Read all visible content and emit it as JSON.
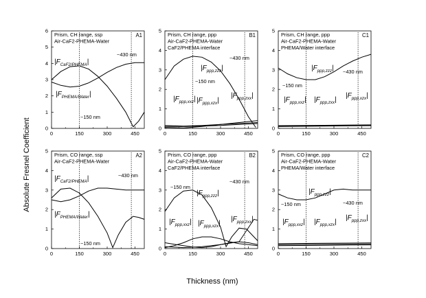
{
  "figure": {
    "ylabel": "Absolute Fresnel Coefficient",
    "xlabel": "Thickness (nm)"
  },
  "chart_data": [
    {
      "type": "line",
      "label": "A1",
      "info": [
        "Prism, CH range, ssp",
        "Air-CaF2-PHEMA-Water"
      ],
      "xlim": [
        0,
        500
      ],
      "ylim": [
        0,
        6
      ],
      "xticks": [
        0,
        150,
        300,
        450
      ],
      "yticks": [
        0,
        1,
        2,
        3,
        4,
        5,
        6
      ],
      "markers": [
        150,
        430
      ],
      "annotations": [
        "~430 nm",
        "~150 nm"
      ],
      "series": [
        {
          "name": "|F_CaF2/PHEMA|",
          "x": [
            0,
            50,
            100,
            150,
            200,
            250,
            300,
            350,
            400,
            450,
            500
          ],
          "y": [
            2.85,
            2.65,
            2.55,
            2.6,
            2.8,
            3.1,
            3.45,
            3.75,
            3.95,
            4.05,
            4.05
          ]
        },
        {
          "name": "|F_PHEMA/Water|",
          "x": [
            0,
            50,
            100,
            150,
            200,
            250,
            300,
            350,
            400,
            440,
            470,
            500
          ],
          "y": [
            3.0,
            3.5,
            3.8,
            3.85,
            3.65,
            3.2,
            2.6,
            1.85,
            1.0,
            0.1,
            0.45,
            1.0
          ]
        }
      ]
    },
    {
      "type": "line",
      "label": "B1",
      "info": [
        "Prism, CH range, ppp",
        "Air-CaF2-PHEMA-Water",
        "CaF2/PHEMA interface"
      ],
      "xlim": [
        0,
        500
      ],
      "ylim": [
        0,
        5
      ],
      "xticks": [
        0,
        150,
        300,
        450
      ],
      "yticks": [
        0,
        1,
        2,
        3,
        4,
        5
      ],
      "markers": [
        150,
        430
      ],
      "annotations": [
        "~430 nm",
        "~150 nm"
      ],
      "series": [
        {
          "name": "|F_ppp,zzz|",
          "x": [
            0,
            50,
            100,
            150,
            200,
            250,
            300,
            350,
            400,
            450,
            490
          ],
          "y": [
            2.5,
            3.2,
            3.55,
            3.7,
            3.65,
            3.4,
            2.95,
            2.3,
            1.5,
            0.6,
            0.05
          ]
        },
        {
          "name": "|F_ppp,xxz|",
          "x": [
            0,
            100,
            200,
            300,
            400,
            500
          ],
          "y": [
            0.1,
            0.1,
            0.12,
            0.15,
            0.2,
            0.25
          ]
        },
        {
          "name": "|F_ppp,xzx|",
          "x": [
            0,
            100,
            200,
            300,
            400,
            500
          ],
          "y": [
            0.05,
            0.02,
            0.1,
            0.2,
            0.3,
            0.4
          ]
        },
        {
          "name": "|F_ppp,zxx|",
          "x": [
            0,
            100,
            200,
            300,
            400,
            500
          ],
          "y": [
            0.15,
            0.12,
            0.15,
            0.2,
            0.25,
            0.3
          ]
        }
      ]
    },
    {
      "type": "line",
      "label": "C1",
      "info": [
        "Prism, CH range, ppp",
        "Air-CaF2-PHEMA-Water",
        "PHEMA/Water interface"
      ],
      "xlim": [
        0,
        500
      ],
      "ylim": [
        0,
        5
      ],
      "xticks": [
        0,
        150,
        300,
        450
      ],
      "yticks": [
        0,
        1,
        2,
        3,
        4,
        5
      ],
      "markers": [
        150,
        430
      ],
      "annotations": [
        "~430 nm",
        "~150 nm"
      ],
      "series": [
        {
          "name": "|F_ppp,zzz|",
          "x": [
            0,
            50,
            100,
            150,
            200,
            250,
            300,
            350,
            400,
            450,
            500
          ],
          "y": [
            3.1,
            2.8,
            2.6,
            2.5,
            2.5,
            2.65,
            2.9,
            3.2,
            3.45,
            3.65,
            3.8
          ]
        },
        {
          "name": "|F_ppp,xxz|",
          "x": [
            0,
            250,
            500
          ],
          "y": [
            0.1,
            0.12,
            0.14
          ]
        },
        {
          "name": "|F_ppp,zxx|",
          "x": [
            0,
            250,
            500
          ],
          "y": [
            0.12,
            0.14,
            0.16
          ]
        },
        {
          "name": "|F_ppp,xzx|",
          "x": [
            0,
            250,
            500
          ],
          "y": [
            0.14,
            0.16,
            0.18
          ]
        }
      ]
    },
    {
      "type": "line",
      "label": "A2",
      "info": [
        "Prism, CO range, ssp",
        "Air-CaF2-PHEMA-Water"
      ],
      "xlim": [
        0,
        500
      ],
      "ylim": [
        0,
        5
      ],
      "xticks": [
        0,
        150,
        300,
        450
      ],
      "yticks": [
        0,
        1,
        2,
        3,
        4,
        5
      ],
      "markers": [
        150,
        430
      ],
      "annotations": [
        "~430 nm",
        "~150 nm"
      ],
      "series": [
        {
          "name": "|F_CaF2/PHEMA|",
          "x": [
            0,
            50,
            100,
            150,
            200,
            250,
            300,
            350,
            400,
            450,
            500
          ],
          "y": [
            2.5,
            2.4,
            2.5,
            2.7,
            2.95,
            3.1,
            3.1,
            3.05,
            3.0,
            3.0,
            3.0
          ]
        },
        {
          "name": "|F_PHEMA/Water|",
          "x": [
            0,
            50,
            100,
            150,
            200,
            250,
            300,
            330,
            360,
            400,
            440,
            470,
            500
          ],
          "y": [
            2.6,
            3.05,
            3.1,
            2.85,
            2.35,
            1.65,
            0.8,
            0.05,
            0.7,
            1.35,
            1.65,
            1.6,
            1.5
          ]
        }
      ]
    },
    {
      "type": "line",
      "label": "B2",
      "info": [
        "Prism, CO range, ppp",
        "Air-CaF2-PHEMA-Water",
        "CaF2/PHEMA interface"
      ],
      "xlim": [
        0,
        500
      ],
      "ylim": [
        0,
        5
      ],
      "xticks": [
        0,
        150,
        300,
        450
      ],
      "yticks": [
        0,
        1,
        2,
        3,
        4,
        5
      ],
      "markers": [
        150,
        430
      ],
      "annotations": [
        "~430 nm",
        "~150 nm"
      ],
      "series": [
        {
          "name": "|F_ppp,zzz|",
          "x": [
            0,
            50,
            100,
            150,
            200,
            250,
            300,
            330,
            360,
            400,
            440,
            480,
            500
          ],
          "y": [
            1.9,
            2.6,
            2.95,
            3.0,
            2.75,
            2.1,
            1.1,
            0.1,
            0.6,
            1.05,
            1.0,
            0.6,
            0.4
          ]
        },
        {
          "name": "|F_ppp,xxz|",
          "x": [
            0,
            50,
            100,
            150,
            200,
            250,
            300,
            350,
            400,
            450,
            500
          ],
          "y": [
            0.05,
            0.15,
            0.3,
            0.5,
            0.6,
            0.6,
            0.5,
            0.35,
            0.25,
            0.2,
            0.15
          ]
        },
        {
          "name": "|F_ppp,xzx|",
          "x": [
            0,
            50,
            100,
            150,
            200,
            250,
            300,
            350,
            400,
            450,
            500
          ],
          "y": [
            0.3,
            0.22,
            0.15,
            0.08,
            0.05,
            0.1,
            0.2,
            0.3,
            0.35,
            0.3,
            0.2
          ]
        },
        {
          "name": "|F_ppp,zxx|",
          "x": [
            0,
            100,
            200,
            300,
            400,
            480,
            500
          ],
          "y": [
            0.1,
            0.05,
            0.1,
            0.2,
            0.35,
            1.5,
            1.45
          ]
        }
      ]
    },
    {
      "type": "line",
      "label": "C2",
      "info": [
        "Prism, CO range, ppp",
        "Air-CaF2-PHEMA-Water",
        "PHEMA/Water interface"
      ],
      "xlim": [
        0,
        500
      ],
      "ylim": [
        0,
        5
      ],
      "xticks": [
        0,
        150,
        300,
        450
      ],
      "yticks": [
        0,
        1,
        2,
        3,
        4,
        5
      ],
      "markers": [
        150,
        430
      ],
      "annotations": [
        "~430 nm",
        "~150 nm"
      ],
      "series": [
        {
          "name": "|F_ppp,zzz|",
          "x": [
            0,
            50,
            100,
            150,
            200,
            250,
            300,
            350,
            400,
            450,
            500
          ],
          "y": [
            2.8,
            2.6,
            2.5,
            2.5,
            2.6,
            2.8,
            3.0,
            3.05,
            3.0,
            3.0,
            3.0
          ]
        },
        {
          "name": "|F_ppp,xxz|",
          "x": [
            0,
            250,
            500
          ],
          "y": [
            0.15,
            0.17,
            0.19
          ]
        },
        {
          "name": "|F_ppp,xzx|",
          "x": [
            0,
            250,
            500
          ],
          "y": [
            0.2,
            0.22,
            0.24
          ]
        },
        {
          "name": "|F_ppp,zxx|",
          "x": [
            0,
            250,
            500
          ],
          "y": [
            0.25,
            0.27,
            0.29
          ]
        }
      ]
    }
  ]
}
